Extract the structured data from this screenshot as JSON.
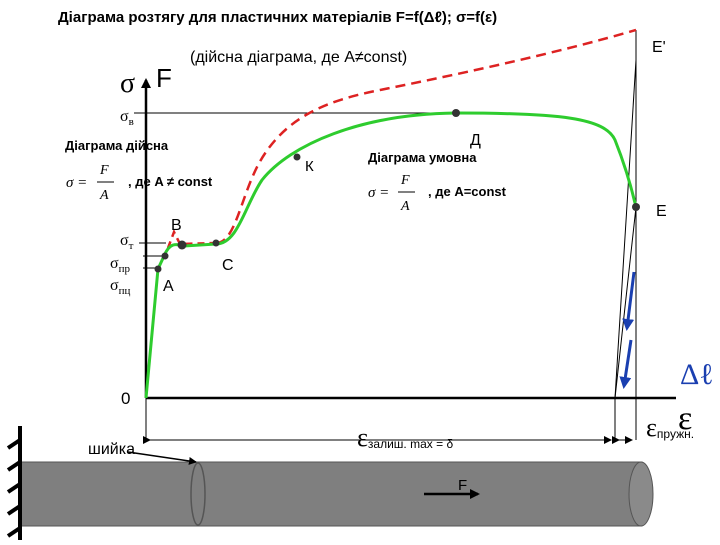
{
  "title": "Діаграма розтягу для пластичних матеріалів F=f(Δℓ); σ=f(ε)",
  "subtitle": "(дійсна діаграма, де A≠const)",
  "axes": {
    "sigma": "σ",
    "force": "F",
    "origin": "0",
    "delta_l": "Δℓ",
    "epsilon": "ε"
  },
  "stress_labels": {
    "sigma_b": "σ",
    "sigma_b_sub": "в",
    "sigma_t": "σ",
    "sigma_t_sub": "т",
    "sigma_pr": "σ",
    "sigma_pr_sub": "пр",
    "sigma_pc": "σ",
    "sigma_pc_sub": "пц"
  },
  "points": {
    "A": "A",
    "B": "В",
    "C": "С",
    "K": "К",
    "D": "Д",
    "E": "E",
    "E_prime": "E'"
  },
  "true_diagram": {
    "label": "Діаграма дійсна",
    "formula_sigma": "σ =",
    "formula_num": "F",
    "formula_den": "A",
    "note": ", де A ≠ const"
  },
  "conventional_diagram": {
    "label": "Діаграма умовна",
    "formula_sigma": "σ =",
    "formula_num": "F",
    "formula_den": "A",
    "note": ", де A=const"
  },
  "strain": {
    "residual": "ε",
    "residual_sub": "залиш. max = δ",
    "elastic": "ε",
    "elastic_sub": "пружн."
  },
  "specimen": {
    "neck_label": "шийка",
    "force_label": "F"
  },
  "colors": {
    "conventional_curve": "#2ecc2e",
    "true_curve": "#dd2222",
    "points": "#333333",
    "specimen": "#7f7f7f",
    "unload_arrows": "#1a3fb0"
  }
}
